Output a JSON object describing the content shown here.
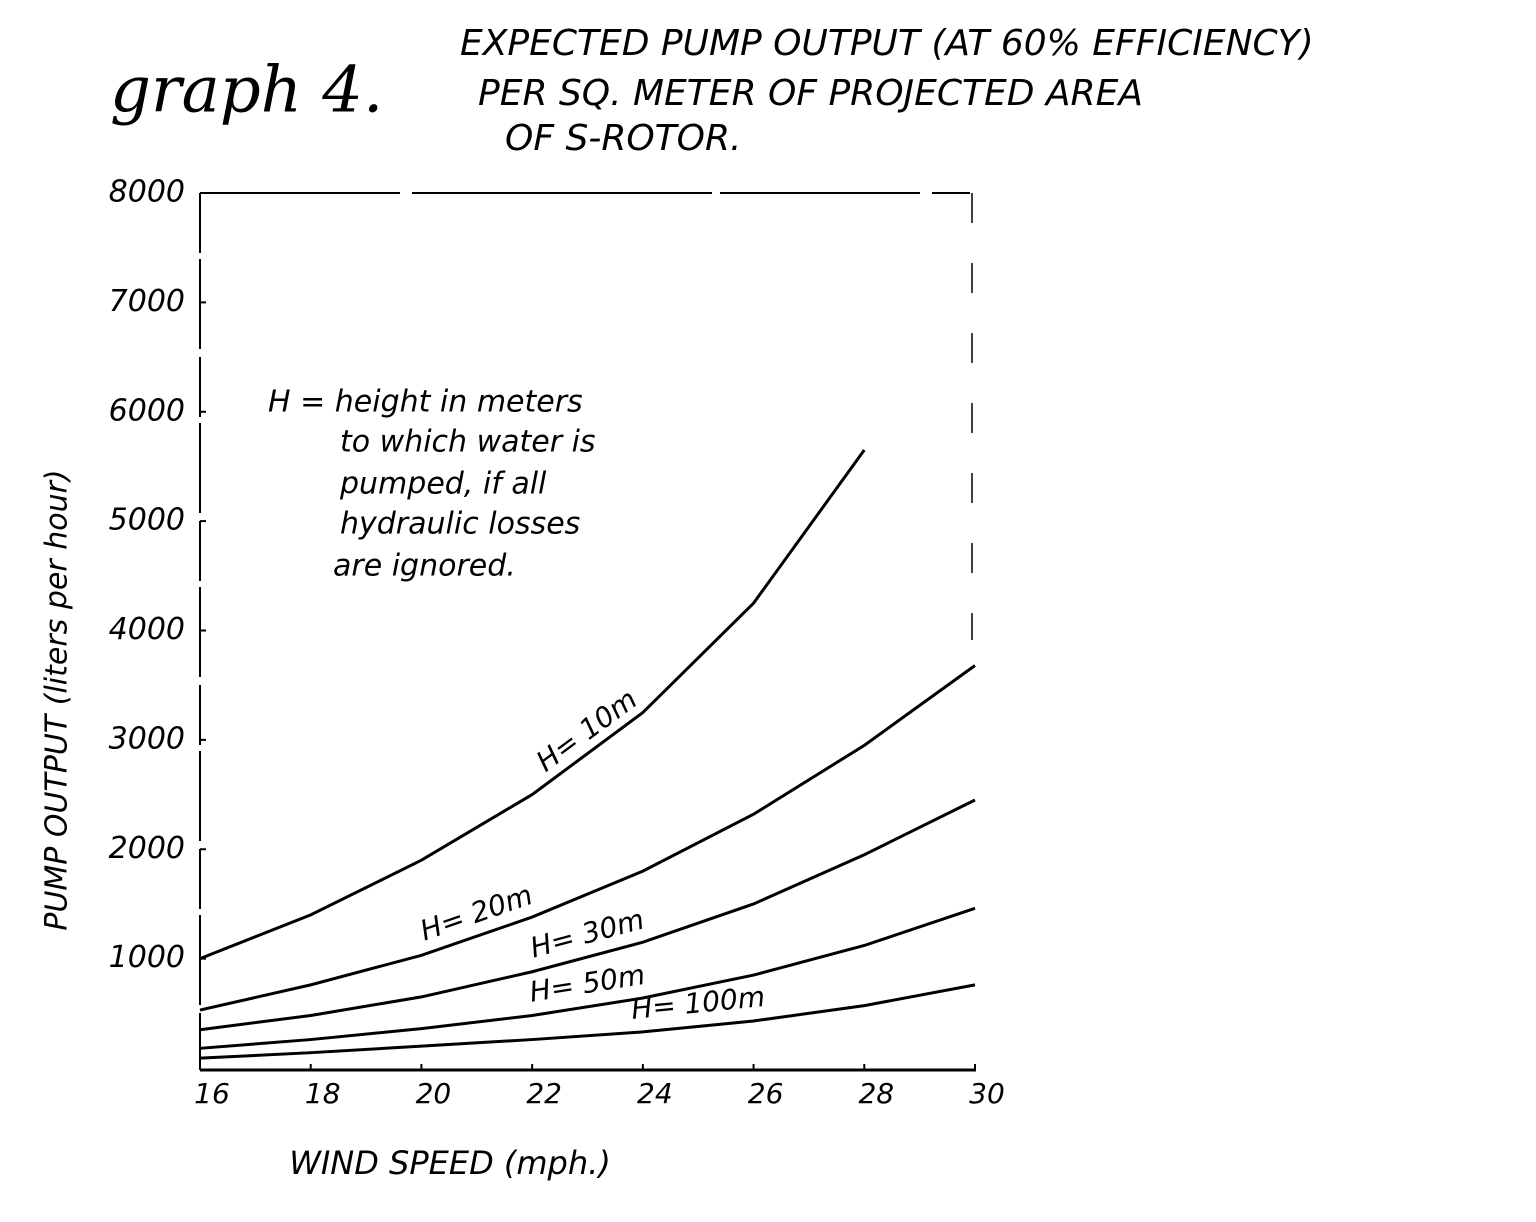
{
  "chart_data": {
    "type": "line",
    "title_prefix": "graph 4.",
    "title_lines": [
      "EXPECTED PUMP OUTPUT (AT 60% EFFICIENCY)",
      "PER SQ. METER OF PROJECTED AREA",
      "OF S-ROTOR."
    ],
    "annotation_lines": [
      "H = height in meters",
      "to which water is",
      "pumped, if all",
      "hydraulic losses",
      "are ignored."
    ],
    "x_label": "WIND SPEED (mph.)",
    "y_label": "PUMP OUTPUT (liters per hour)",
    "x": [
      16,
      18,
      20,
      22,
      24,
      26,
      28,
      30
    ],
    "series": [
      {
        "name": "H= 10m",
        "color": "#000000",
        "values": [
          1000,
          1400,
          1900,
          2500,
          3250,
          4250,
          5650,
          null
        ]
      },
      {
        "name": "H= 20m",
        "color": "#000000",
        "values": [
          530,
          760,
          1030,
          1380,
          1800,
          2320,
          2950,
          3680
        ]
      },
      {
        "name": "H= 30m",
        "color": "#000000",
        "values": [
          350,
          480,
          650,
          880,
          1150,
          1500,
          1950,
          2450
        ]
      },
      {
        "name": "H= 50m",
        "color": "#000000",
        "values": [
          180,
          260,
          360,
          480,
          640,
          850,
          1120,
          1460
        ]
      },
      {
        "name": "H= 100m",
        "color": "#000000",
        "values": [
          90,
          140,
          200,
          260,
          330,
          430,
          570,
          760
        ]
      }
    ],
    "xlim": [
      16,
      30
    ],
    "ylim": [
      0,
      8000
    ],
    "xticks": [
      16,
      18,
      20,
      22,
      24,
      26,
      28,
      30
    ],
    "yticks": [
      1000,
      2000,
      3000,
      4000,
      5000,
      6000,
      7000,
      8000
    ],
    "grid": false
  }
}
